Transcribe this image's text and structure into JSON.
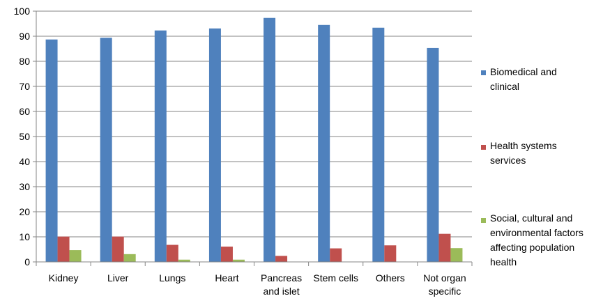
{
  "chart_data": {
    "type": "bar",
    "categories": [
      [
        "Kidney"
      ],
      [
        "Liver"
      ],
      [
        "Lungs"
      ],
      [
        "Heart"
      ],
      [
        "Pancreas",
        "and  islet"
      ],
      [
        "Stem cells"
      ],
      [
        "Others"
      ],
      [
        "Not organ",
        "specific"
      ]
    ],
    "series": [
      {
        "name": [
          "Biomedical and",
          "clinical"
        ],
        "color": "#4F81BD",
        "values": [
          88.7,
          89.4,
          92.3,
          93.1,
          97.3,
          94.5,
          93.4,
          85.3
        ]
      },
      {
        "name": [
          "Health systems",
          "services"
        ],
        "color": "#C0504D",
        "values": [
          10.1,
          10.1,
          6.8,
          6.1,
          2.4,
          5.4,
          6.6,
          11.2
        ]
      },
      {
        "name": [
          "Social, cultural and",
          "environmental factors",
          "affecting population",
          "health"
        ],
        "color": "#9BBB59",
        "values": [
          4.7,
          3.1,
          0.9,
          0.9,
          0,
          0,
          0,
          5.5
        ]
      }
    ],
    "ylim": [
      0,
      100
    ],
    "yticks": [
      0,
      10,
      20,
      30,
      40,
      50,
      60,
      70,
      80,
      90,
      100
    ],
    "grid": true,
    "legend": "right"
  }
}
